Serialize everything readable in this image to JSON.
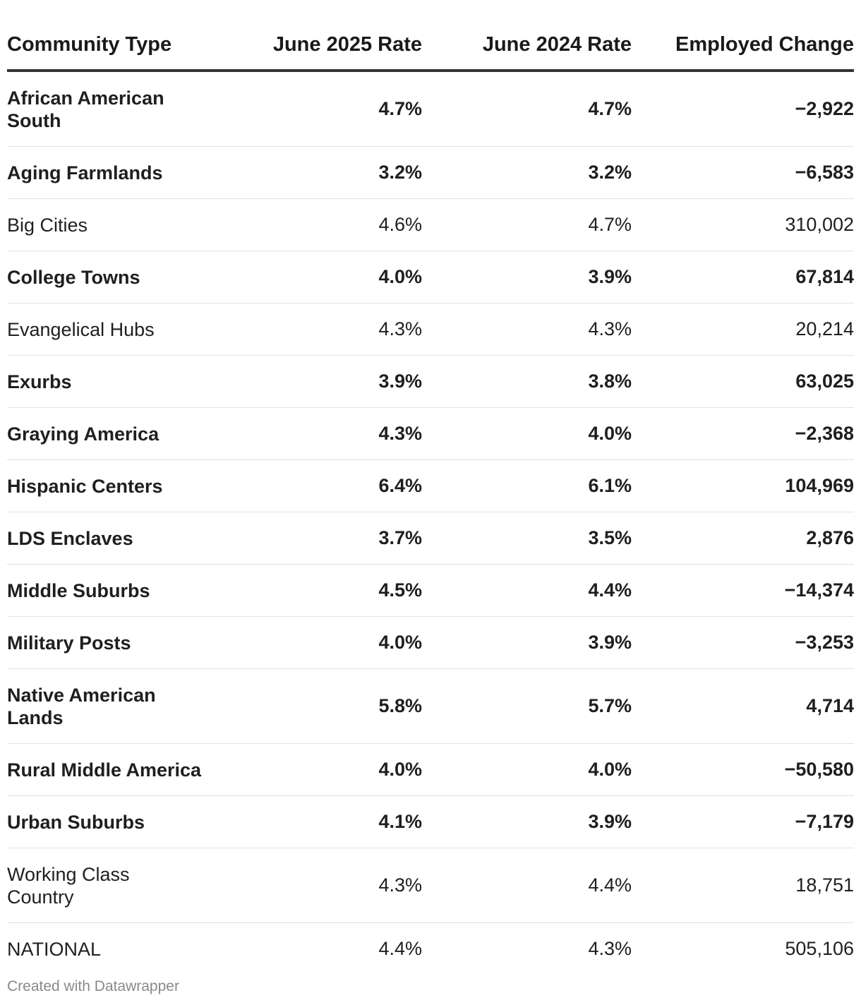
{
  "chart_data": {
    "type": "table",
    "columns": [
      "Community Type",
      "June 2025 Rate",
      "June 2024 Rate",
      "Employed Change"
    ],
    "rows": [
      {
        "community": "African American South",
        "rate_2025": "4.7%",
        "rate_2024": "4.7%",
        "employed_change": "−2,922",
        "bold": true
      },
      {
        "community": "Aging Farmlands",
        "rate_2025": "3.2%",
        "rate_2024": "3.2%",
        "employed_change": "−6,583",
        "bold": true
      },
      {
        "community": "Big Cities",
        "rate_2025": "4.6%",
        "rate_2024": "4.7%",
        "employed_change": "310,002",
        "bold": false
      },
      {
        "community": "College Towns",
        "rate_2025": "4.0%",
        "rate_2024": "3.9%",
        "employed_change": "67,814",
        "bold": true
      },
      {
        "community": "Evangelical Hubs",
        "rate_2025": "4.3%",
        "rate_2024": "4.3%",
        "employed_change": "20,214",
        "bold": false
      },
      {
        "community": "Exurbs",
        "rate_2025": "3.9%",
        "rate_2024": "3.8%",
        "employed_change": "63,025",
        "bold": true
      },
      {
        "community": "Graying America",
        "rate_2025": "4.3%",
        "rate_2024": "4.0%",
        "employed_change": "−2,368",
        "bold": true
      },
      {
        "community": "Hispanic Centers",
        "rate_2025": "6.4%",
        "rate_2024": "6.1%",
        "employed_change": "104,969",
        "bold": true
      },
      {
        "community": "LDS Enclaves",
        "rate_2025": "3.7%",
        "rate_2024": "3.5%",
        "employed_change": "2,876",
        "bold": true
      },
      {
        "community": "Middle Suburbs",
        "rate_2025": "4.5%",
        "rate_2024": "4.4%",
        "employed_change": "−14,374",
        "bold": true
      },
      {
        "community": "Military Posts",
        "rate_2025": "4.0%",
        "rate_2024": "3.9%",
        "employed_change": "−3,253",
        "bold": true
      },
      {
        "community": "Native American Lands",
        "rate_2025": "5.8%",
        "rate_2024": "5.7%",
        "employed_change": "4,714",
        "bold": true
      },
      {
        "community": "Rural Middle America",
        "rate_2025": "4.0%",
        "rate_2024": "4.0%",
        "employed_change": "−50,580",
        "bold": true
      },
      {
        "community": "Urban Suburbs",
        "rate_2025": "4.1%",
        "rate_2024": "3.9%",
        "employed_change": "−7,179",
        "bold": true
      },
      {
        "community": "Working Class Country",
        "rate_2025": "4.3%",
        "rate_2024": "4.4%",
        "employed_change": "18,751",
        "bold": false
      },
      {
        "community": "NATIONAL",
        "rate_2025": "4.4%",
        "rate_2024": "4.3%",
        "employed_change": "505,106",
        "bold": false
      }
    ]
  },
  "footer": {
    "credit": "Created with Datawrapper"
  }
}
